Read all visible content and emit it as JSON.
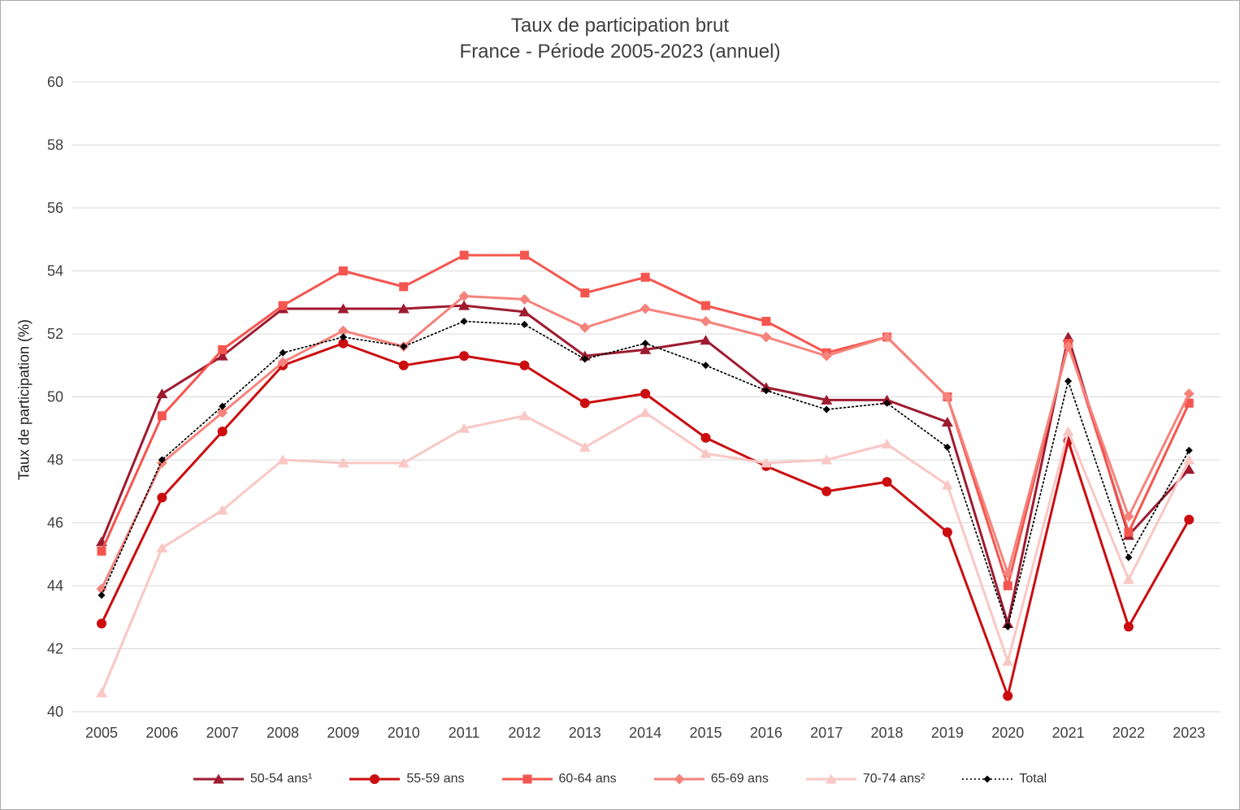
{
  "chart_data": {
    "type": "line",
    "title": "Taux de participation brut",
    "subtitle": "France - Période 2005-2023 (annuel)",
    "xlabel": "",
    "ylabel": "Taux de participation (%)",
    "ylim": [
      40,
      60
    ],
    "ytick_step": 2,
    "grid": true,
    "legend_position": "bottom",
    "gridline_color": "#D9D9D9",
    "categories": [
      2005,
      2006,
      2007,
      2008,
      2009,
      2010,
      2011,
      2012,
      2013,
      2014,
      2015,
      2016,
      2017,
      2018,
      2019,
      2020,
      2021,
      2022,
      2023
    ],
    "series": [
      {
        "name": "50-54 ans¹",
        "color": "#9E1B30",
        "marker": "triangle",
        "line_style": "solid",
        "values": [
          45.4,
          50.1,
          51.3,
          52.8,
          52.8,
          52.8,
          52.9,
          52.7,
          51.3,
          51.5,
          51.8,
          50.3,
          49.9,
          49.9,
          49.2,
          42.8,
          51.9,
          45.6,
          47.7
        ]
      },
      {
        "name": "55-59 ans",
        "color": "#CB0D10",
        "marker": "circle",
        "line_style": "solid",
        "values": [
          42.8,
          46.8,
          48.9,
          51.0,
          51.7,
          51.0,
          51.3,
          51.0,
          49.8,
          50.1,
          48.7,
          47.8,
          47.0,
          47.3,
          45.7,
          40.5,
          48.6,
          42.7,
          46.1
        ]
      },
      {
        "name": "60-64 ans",
        "color": "#F4564F",
        "marker": "square",
        "line_style": "solid",
        "values": [
          45.1,
          49.4,
          51.5,
          52.9,
          54.0,
          53.5,
          54.5,
          54.5,
          53.3,
          53.8,
          52.9,
          52.4,
          51.4,
          51.9,
          50.0,
          44.0,
          51.7,
          45.7,
          49.8
        ]
      },
      {
        "name": "65-69 ans",
        "color": "#F5837C",
        "marker": "diamond",
        "line_style": "solid",
        "values": [
          43.9,
          47.9,
          49.5,
          51.1,
          52.1,
          51.6,
          53.2,
          53.1,
          52.2,
          52.8,
          52.4,
          51.9,
          51.3,
          51.9,
          50.0,
          44.4,
          51.6,
          46.2,
          50.1
        ]
      },
      {
        "name": "70-74 ans²",
        "color": "#F9C7C4",
        "marker": "triangle",
        "line_style": "solid",
        "values": [
          40.6,
          45.2,
          46.4,
          48.0,
          47.9,
          47.9,
          49.0,
          49.4,
          48.4,
          49.5,
          48.2,
          47.9,
          48.0,
          48.5,
          47.2,
          41.6,
          48.9,
          44.2,
          48.0
        ]
      },
      {
        "name": "Total",
        "color": "#000000",
        "marker": "diamond",
        "marker_small": true,
        "line_style": "dotted",
        "values": [
          43.7,
          48.0,
          49.7,
          51.4,
          51.9,
          51.6,
          52.4,
          52.3,
          51.2,
          51.7,
          51.0,
          50.2,
          49.6,
          49.8,
          48.4,
          42.7,
          50.5,
          44.9,
          48.3
        ]
      }
    ]
  }
}
